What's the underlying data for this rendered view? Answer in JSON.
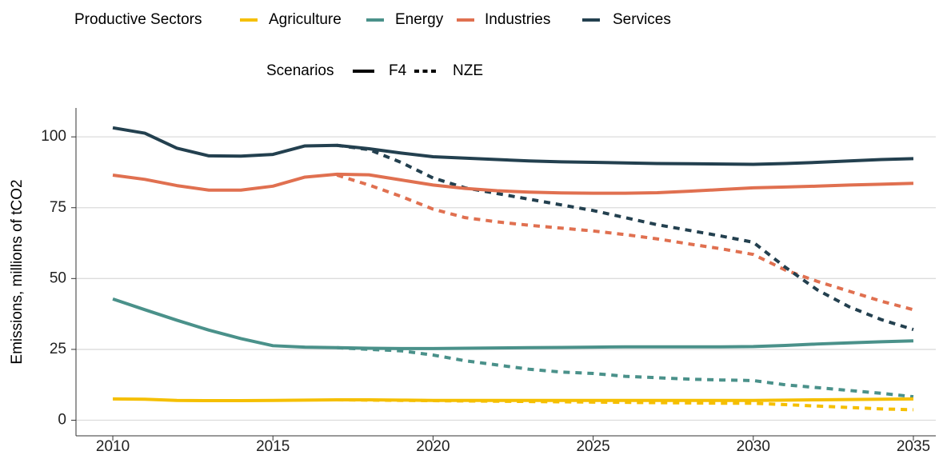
{
  "chart_data": {
    "type": "line",
    "y_label": "Emissions, millions of tCO2",
    "legend_sectors": {
      "title": "Productive Sectors",
      "items": [
        {
          "name": "Agriculture",
          "color": "#f5bf00"
        },
        {
          "name": "Energy",
          "color": "#4a918a"
        },
        {
          "name": "Industries",
          "color": "#e07050"
        },
        {
          "name": "Services",
          "color": "#23404f"
        }
      ]
    },
    "legend_scenarios": {
      "title": "Scenarios",
      "items": [
        {
          "name": "F4",
          "dash": "solid"
        },
        {
          "name": "NZE",
          "dash": "dotted"
        }
      ]
    },
    "x": [
      2010,
      2011,
      2012,
      2013,
      2014,
      2015,
      2016,
      2017,
      2018,
      2019,
      2020,
      2021,
      2022,
      2023,
      2024,
      2025,
      2026,
      2027,
      2028,
      2029,
      2030,
      2031,
      2032,
      2033,
      2034,
      2035
    ],
    "xlim": [
      2008.85,
      2035.7
    ],
    "xticks": [
      2010,
      2015,
      2020,
      2025,
      2030,
      2035
    ],
    "ylim": [
      -5.5,
      110.2
    ],
    "yticks": [
      0,
      25,
      50,
      75,
      100
    ],
    "grid": true,
    "series": [
      {
        "sector": "Agriculture",
        "scenario": "NZE",
        "color": "#f5bf00",
        "dash": "dotted",
        "values": [
          null,
          null,
          null,
          null,
          null,
          null,
          null,
          7.2,
          7.1,
          7,
          6.9,
          6.8,
          6.7,
          6.6,
          6.5,
          6.4,
          6.3,
          6.2,
          6.1,
          6,
          6,
          5.5,
          5,
          4.5,
          4,
          3.7
        ]
      },
      {
        "sector": "Energy",
        "scenario": "NZE",
        "color": "#4a918a",
        "dash": "dotted",
        "values": [
          null,
          null,
          null,
          null,
          null,
          null,
          null,
          25.6,
          25,
          24.5,
          23,
          21,
          19.5,
          18,
          17,
          16.5,
          15.5,
          15,
          14.5,
          14.2,
          14,
          12.5,
          11.5,
          10.5,
          9.5,
          8.3
        ]
      },
      {
        "sector": "Industries",
        "scenario": "NZE",
        "color": "#e07050",
        "dash": "dotted",
        "values": [
          null,
          null,
          null,
          null,
          null,
          null,
          null,
          86.5,
          83,
          79,
          74.5,
          71.5,
          70,
          68.8,
          67.8,
          66.8,
          65.5,
          64,
          62.2,
          60.5,
          58.5,
          53,
          49,
          45.5,
          42,
          39
        ]
      },
      {
        "sector": "Services",
        "scenario": "NZE",
        "color": "#23404f",
        "dash": "dotted",
        "values": [
          null,
          null,
          null,
          null,
          null,
          null,
          null,
          97,
          95.5,
          91,
          85.5,
          82,
          80,
          78,
          76,
          74,
          71.5,
          69,
          67,
          65,
          62.8,
          54,
          46,
          40,
          35.5,
          32
        ]
      },
      {
        "sector": "Agriculture",
        "scenario": "F4",
        "color": "#f5bf00",
        "dash": "solid",
        "values": [
          7.5,
          7.4,
          7,
          6.9,
          6.9,
          7,
          7.1,
          7.2,
          7.2,
          7.1,
          7,
          7,
          7,
          7,
          7,
          7,
          7,
          7,
          7,
          7,
          7,
          7.1,
          7.2,
          7.3,
          7.4,
          7.5
        ]
      },
      {
        "sector": "Energy",
        "scenario": "F4",
        "color": "#4a918a",
        "dash": "solid",
        "values": [
          42.8,
          39,
          35.3,
          31.8,
          28.8,
          26.3,
          25.8,
          25.6,
          25.4,
          25.3,
          25.3,
          25.4,
          25.5,
          25.6,
          25.7,
          25.8,
          25.9,
          25.9,
          25.9,
          25.9,
          26,
          26.4,
          26.9,
          27.3,
          27.7,
          28
        ]
      },
      {
        "sector": "Industries",
        "scenario": "F4",
        "color": "#e07050",
        "dash": "solid",
        "values": [
          86.5,
          85,
          82.8,
          81.2,
          81.2,
          82.6,
          85.8,
          86.8,
          86.6,
          84.8,
          83,
          81.8,
          81,
          80.5,
          80.2,
          80.1,
          80.1,
          80.3,
          80.8,
          81.4,
          82,
          82.3,
          82.6,
          83,
          83.3,
          83.6
        ]
      },
      {
        "sector": "Services",
        "scenario": "F4",
        "color": "#23404f",
        "dash": "solid",
        "values": [
          103.2,
          101.3,
          96,
          93.3,
          93.2,
          93.8,
          96.8,
          97,
          95.8,
          94.3,
          93,
          92.5,
          92,
          91.5,
          91.2,
          91,
          90.8,
          90.6,
          90.5,
          90.4,
          90.3,
          90.6,
          91,
          91.5,
          92,
          92.3
        ]
      }
    ]
  }
}
